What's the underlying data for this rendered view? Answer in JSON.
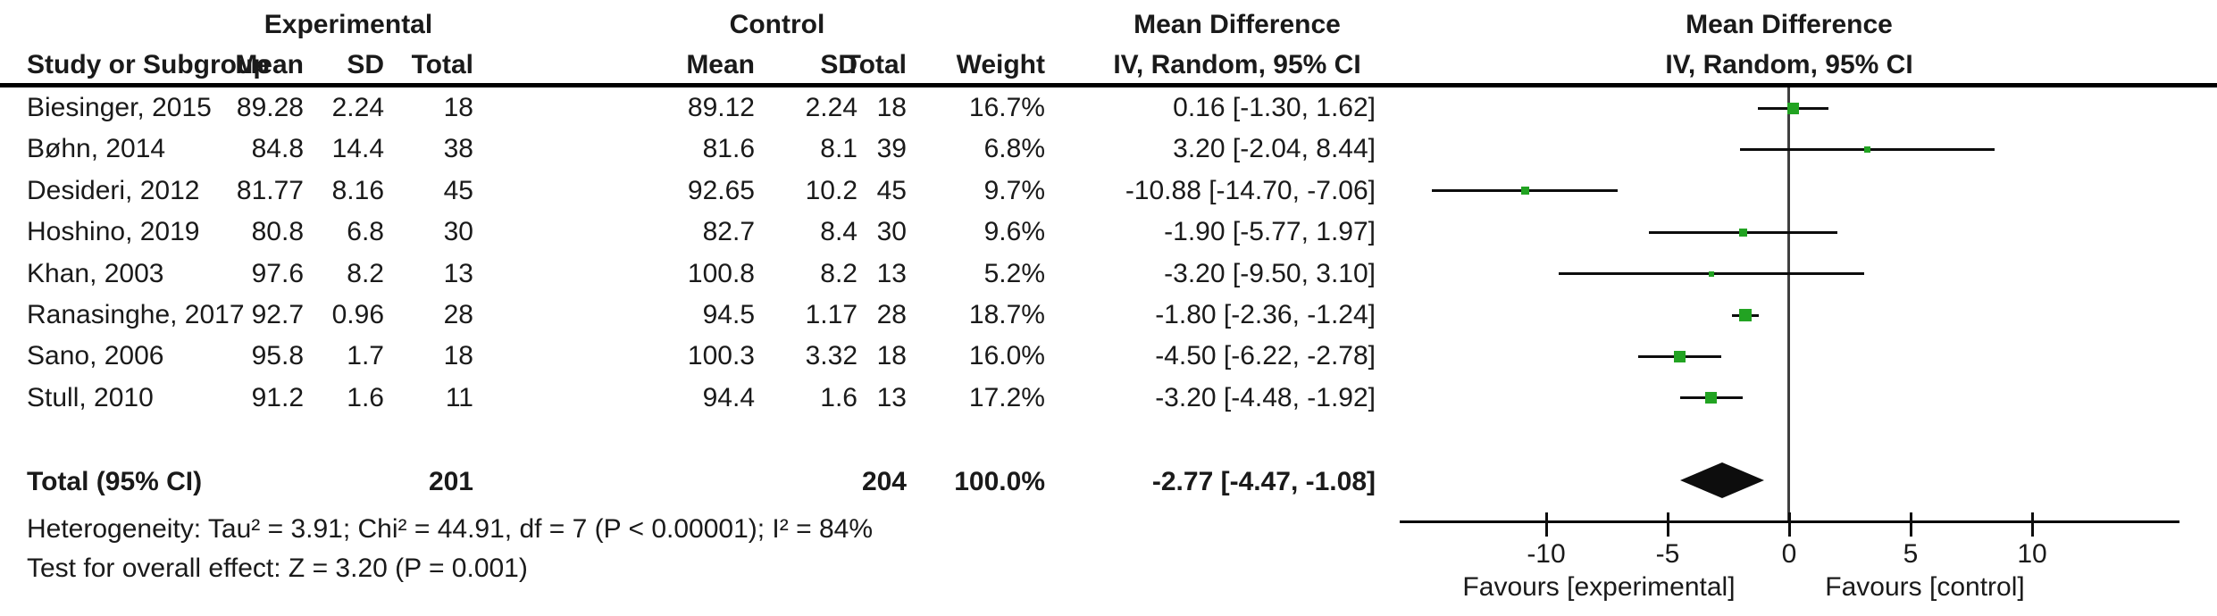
{
  "header": {
    "group_experimental": "Experimental",
    "group_control": "Control",
    "md_table": "Mean Difference",
    "md_plot": "Mean Difference",
    "method_table": "IV, Random, 95% CI",
    "method_plot": "IV, Random, 95% CI",
    "study_col": "Study or Subgroup",
    "mean_e": "Mean",
    "sd_e": "SD",
    "total_e": "Total",
    "mean_c": "Mean",
    "sd_c": "SD",
    "total_c": "Total",
    "weight_col": "Weight"
  },
  "table": {
    "rows": [
      {
        "study": "Biesinger, 2015",
        "mean_e": "89.28",
        "sd_e": "2.24",
        "total_e": "18",
        "mean_c": "89.12",
        "sd_c": "2.24",
        "total_c": "18",
        "weight": "16.7%",
        "ci_text": "0.16 [-1.30, 1.62]",
        "md": 0.16,
        "lo": -1.3,
        "hi": 1.62,
        "weight_val": 16.7
      },
      {
        "study": "Bøhn, 2014",
        "mean_e": "84.8",
        "sd_e": "14.4",
        "total_e": "38",
        "mean_c": "81.6",
        "sd_c": "8.1",
        "total_c": "39",
        "weight": "6.8%",
        "ci_text": "3.20 [-2.04, 8.44]",
        "md": 3.2,
        "lo": -2.04,
        "hi": 8.44,
        "weight_val": 6.8
      },
      {
        "study": "Desideri, 2012",
        "mean_e": "81.77",
        "sd_e": "8.16",
        "total_e": "45",
        "mean_c": "92.65",
        "sd_c": "10.2",
        "total_c": "45",
        "weight": "9.7%",
        "ci_text": "-10.88 [-14.70, -7.06]",
        "md": -10.88,
        "lo": -14.7,
        "hi": -7.06,
        "weight_val": 9.7
      },
      {
        "study": "Hoshino, 2019",
        "mean_e": "80.8",
        "sd_e": "6.8",
        "total_e": "30",
        "mean_c": "82.7",
        "sd_c": "8.4",
        "total_c": "30",
        "weight": "9.6%",
        "ci_text": "-1.90 [-5.77, 1.97]",
        "md": -1.9,
        "lo": -5.77,
        "hi": 1.97,
        "weight_val": 9.6
      },
      {
        "study": "Khan, 2003",
        "mean_e": "97.6",
        "sd_e": "8.2",
        "total_e": "13",
        "mean_c": "100.8",
        "sd_c": "8.2",
        "total_c": "13",
        "weight": "5.2%",
        "ci_text": "-3.20 [-9.50, 3.10]",
        "md": -3.2,
        "lo": -9.5,
        "hi": 3.1,
        "weight_val": 5.2
      },
      {
        "study": "Ranasinghe, 2017",
        "mean_e": "92.7",
        "sd_e": "0.96",
        "total_e": "28",
        "mean_c": "94.5",
        "sd_c": "1.17",
        "total_c": "28",
        "weight": "18.7%",
        "ci_text": "-1.80 [-2.36, -1.24]",
        "md": -1.8,
        "lo": -2.36,
        "hi": -1.24,
        "weight_val": 18.7
      },
      {
        "study": "Sano, 2006",
        "mean_e": "95.8",
        "sd_e": "1.7",
        "total_e": "18",
        "mean_c": "100.3",
        "sd_c": "3.32",
        "total_c": "18",
        "weight": "16.0%",
        "ci_text": "-4.50 [-6.22, -2.78]",
        "md": -4.5,
        "lo": -6.22,
        "hi": -2.78,
        "weight_val": 16.0
      },
      {
        "study": "Stull, 2010",
        "mean_e": "91.2",
        "sd_e": "1.6",
        "total_e": "11",
        "mean_c": "94.4",
        "sd_c": "1.6",
        "total_c": "13",
        "weight": "17.2%",
        "ci_text": "-3.20 [-4.48, -1.92]",
        "md": -3.2,
        "lo": -4.48,
        "hi": -1.92,
        "weight_val": 17.2
      }
    ],
    "total": {
      "label": "Total (95% CI)",
      "total_e": "201",
      "total_c": "204",
      "weight": "100.0%",
      "ci_text": "-2.77 [-4.47, -1.08]",
      "md": -2.77,
      "lo": -4.47,
      "hi": -1.08
    }
  },
  "footer": {
    "heterogeneity": "Heterogeneity: Tau² = 3.91; Chi² = 44.91, df = 7 (P < 0.00001); I² = 84%",
    "overall_effect": "Test for overall effect: Z = 3.20 (P = 0.001)"
  },
  "axis": {
    "ticks": [
      "-10",
      "-5",
      "0",
      "5",
      "10"
    ],
    "tick_values": [
      -10,
      -5,
      0,
      5,
      10
    ],
    "favours_left": "Favours [experimental]",
    "favours_right": "Favours [control]"
  },
  "colors": {
    "marker_green": "#22a322",
    "diamond_black": "#0d0d0d",
    "line_black": "#0d0d0d",
    "zero_line_gray": "#3f3f3f"
  },
  "chart_data": {
    "type": "scatter",
    "subtype": "forest-plot (meta-analysis, mean difference, IV random effects)",
    "title": "Mean Difference — IV, Random, 95% CI",
    "categories": [
      "Biesinger, 2015",
      "Bøhn, 2014",
      "Desideri, 2012",
      "Hoshino, 2019",
      "Khan, 2003",
      "Ranasinghe, 2017",
      "Sano, 2006",
      "Stull, 2010"
    ],
    "series": [
      {
        "name": "mean_difference",
        "values": [
          0.16,
          3.2,
          -10.88,
          -1.9,
          -3.2,
          -1.8,
          -4.5,
          -3.2
        ]
      },
      {
        "name": "ci_lower_95",
        "values": [
          -1.3,
          -2.04,
          -14.7,
          -5.77,
          -9.5,
          -2.36,
          -6.22,
          -4.48
        ]
      },
      {
        "name": "ci_upper_95",
        "values": [
          1.62,
          8.44,
          -7.06,
          1.97,
          3.1,
          -1.24,
          -2.78,
          -1.92
        ]
      },
      {
        "name": "weight_percent",
        "values": [
          16.7,
          6.8,
          9.7,
          9.6,
          5.2,
          18.7,
          16.0,
          17.2
        ]
      }
    ],
    "pooled": {
      "mean_difference": -2.77,
      "ci_lower_95": -4.47,
      "ci_upper_95": -1.08,
      "n_experimental": 201,
      "n_control": 204,
      "weight_percent": 100.0
    },
    "xlabel": "Mean Difference",
    "ylabel": "",
    "xlim": [
      -16,
      16
    ],
    "x_ticks": [
      -10,
      -5,
      0,
      5,
      10
    ],
    "grid": false,
    "legend_position": "none",
    "annotations": [
      "Favours [experimental] (left)",
      "Favours [control] (right)"
    ]
  }
}
